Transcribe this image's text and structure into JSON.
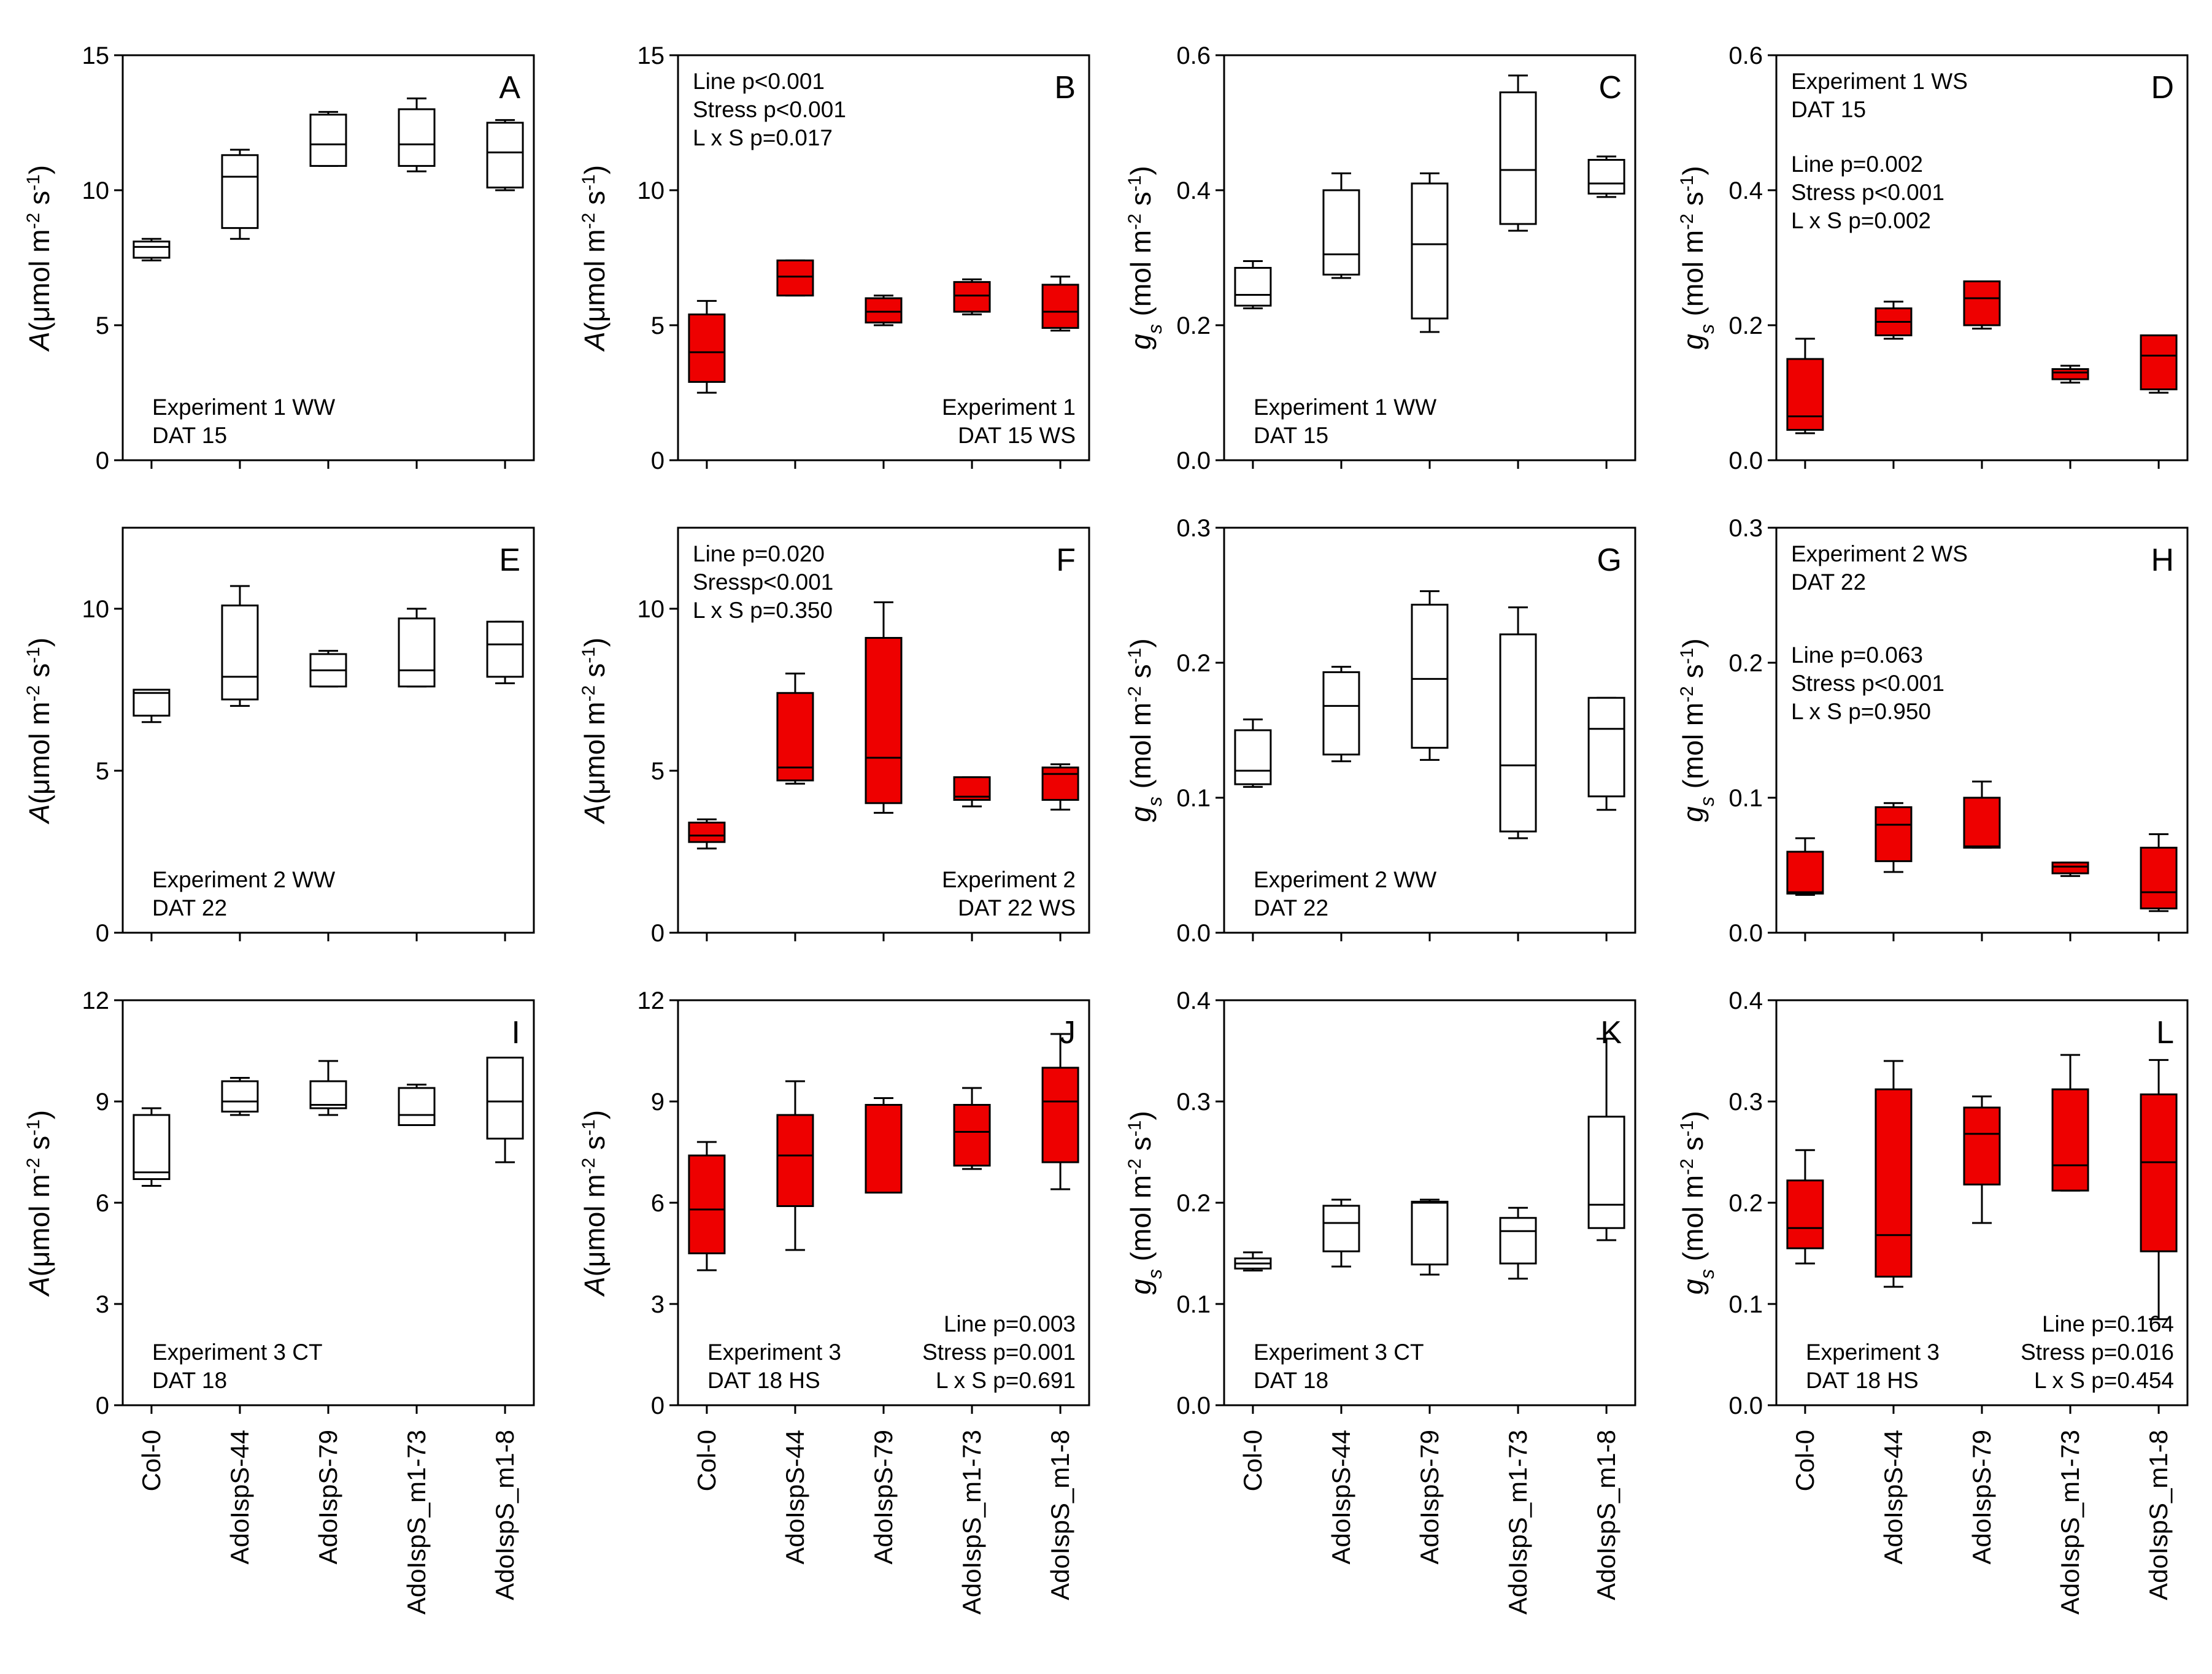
{
  "figure": {
    "x_categories": [
      "Col-0",
      "AdoIspS-44",
      "AdoIspS-79",
      "AdoIspS_m1-73",
      "AdoIspS_m1-8"
    ],
    "colors": {
      "stress_fill": "#ee0000",
      "control_fill": "#ffffff",
      "line": "#000000"
    }
  },
  "chart_data": [
    {
      "letter": "A",
      "type": "box",
      "condition": "WW",
      "ylabel": {
        "main": "A",
        "unit_open": "(μmol m",
        "sup1": "-2",
        "mid": " s",
        "sup2": "-1",
        "close": ")"
      },
      "yticks": [
        "0",
        "5",
        "10",
        "15"
      ],
      "ylim": [
        0,
        15
      ],
      "annotation_position": "bottom-left",
      "annotation": [
        "Experiment 1 WW",
        "DAT 15"
      ],
      "boxes": [
        {
          "category": "Col-0",
          "min": 7.4,
          "q1": 7.5,
          "median": 7.9,
          "q3": 8.1,
          "max": 8.2
        },
        {
          "category": "AdoIspS-44",
          "min": 8.2,
          "q1": 8.6,
          "median": 10.5,
          "q3": 11.3,
          "max": 11.5
        },
        {
          "category": "AdoIspS-79",
          "min": 10.9,
          "q1": 10.9,
          "median": 11.7,
          "q3": 12.8,
          "max": 12.9
        },
        {
          "category": "AdoIspS_m1-73",
          "min": 10.7,
          "q1": 10.9,
          "median": 11.7,
          "q3": 13.0,
          "max": 13.4
        },
        {
          "category": "AdoIspS_m1-8",
          "min": 10.0,
          "q1": 10.1,
          "median": 11.4,
          "q3": 12.5,
          "max": 12.6
        }
      ]
    },
    {
      "letter": "B",
      "type": "box",
      "condition": "WS",
      "ylabel": {
        "main": "A",
        "unit_open": "(μmol m",
        "sup1": "-2",
        "mid": " s",
        "sup2": "-1",
        "close": ")"
      },
      "yticks": [
        "0",
        "5",
        "10",
        "15"
      ],
      "ylim": [
        0,
        15
      ],
      "annotation_position": "top-left",
      "annotation": [
        "Line p<0.001",
        "Stress p<0.001",
        "L x S p=0.017"
      ],
      "annotation2_position": "bottom-right",
      "annotation2": [
        "Experiment 1",
        "DAT 15  WS"
      ],
      "boxes": [
        {
          "category": "Col-0",
          "min": 2.5,
          "q1": 2.9,
          "median": 4.0,
          "q3": 5.4,
          "max": 5.9
        },
        {
          "category": "AdoIspS-44",
          "min": 6.1,
          "q1": 6.1,
          "median": 6.8,
          "q3": 7.4,
          "max": 7.4
        },
        {
          "category": "AdoIspS-79",
          "min": 5.0,
          "q1": 5.1,
          "median": 5.5,
          "q3": 6.0,
          "max": 6.1
        },
        {
          "category": "AdoIspS_m1-73",
          "min": 5.4,
          "q1": 5.5,
          "median": 6.1,
          "q3": 6.6,
          "max": 6.7
        },
        {
          "category": "AdoIspS_m1-8",
          "min": 4.8,
          "q1": 4.9,
          "median": 5.5,
          "q3": 6.5,
          "max": 6.8
        }
      ]
    },
    {
      "letter": "C",
      "type": "box",
      "condition": "WW",
      "ylabel": {
        "main": "g",
        "sub": "s",
        "unit_open": " (mol m",
        "sup1": "-2",
        "mid": " s",
        "sup2": "-1",
        "close": ")"
      },
      "yticks": [
        "0.0",
        "0.2",
        "0.4",
        "0.6"
      ],
      "ylim": [
        0,
        0.6
      ],
      "annotation_position": "bottom-left",
      "annotation": [
        "Experiment 1  WW",
        "DAT 15"
      ],
      "boxes": [
        {
          "category": "Col-0",
          "min": 0.225,
          "q1": 0.229,
          "median": 0.245,
          "q3": 0.285,
          "max": 0.295
        },
        {
          "category": "AdoIspS-44",
          "min": 0.27,
          "q1": 0.275,
          "median": 0.305,
          "q3": 0.4,
          "max": 0.425
        },
        {
          "category": "AdoIspS-79",
          "min": 0.19,
          "q1": 0.21,
          "median": 0.32,
          "q3": 0.41,
          "max": 0.425
        },
        {
          "category": "AdoIspS_m1-73",
          "min": 0.34,
          "q1": 0.35,
          "median": 0.43,
          "q3": 0.545,
          "max": 0.57
        },
        {
          "category": "AdoIspS_m1-8",
          "min": 0.39,
          "q1": 0.395,
          "median": 0.41,
          "q3": 0.445,
          "max": 0.45
        }
      ]
    },
    {
      "letter": "D",
      "type": "box",
      "condition": "WS",
      "ylabel": {
        "main": "g",
        "sub": "s",
        "unit_open": " (mol m",
        "sup1": "-2",
        "mid": " s",
        "sup2": "-1",
        "close": ")"
      },
      "yticks": [
        "0.0",
        "0.2",
        "0.4",
        "0.6"
      ],
      "ylim": [
        0,
        0.6
      ],
      "annotation_position": "top-left",
      "annotation": [
        "Experiment 1 WS",
        "DAT 15"
      ],
      "annotation2_position": "upper-left",
      "annotation2": [
        "Line p=0.002",
        "Stress p<0.001",
        "L x S p=0.002"
      ],
      "boxes": [
        {
          "category": "Col-0",
          "min": 0.04,
          "q1": 0.045,
          "median": 0.065,
          "q3": 0.15,
          "max": 0.18
        },
        {
          "category": "AdoIspS-44",
          "min": 0.18,
          "q1": 0.185,
          "median": 0.205,
          "q3": 0.225,
          "max": 0.235
        },
        {
          "category": "AdoIspS-79",
          "min": 0.195,
          "q1": 0.2,
          "median": 0.24,
          "q3": 0.265,
          "max": 0.265
        },
        {
          "category": "AdoIspS_m1-73",
          "min": 0.115,
          "q1": 0.12,
          "median": 0.13,
          "q3": 0.135,
          "max": 0.14
        },
        {
          "category": "AdoIspS_m1-8",
          "min": 0.1,
          "q1": 0.105,
          "median": 0.155,
          "q3": 0.185,
          "max": 0.185
        }
      ]
    },
    {
      "letter": "E",
      "type": "box",
      "condition": "WW",
      "ylabel": {
        "main": "A",
        "unit_open": "(μmol m",
        "sup1": "-2",
        "mid": " s",
        "sup2": "-1",
        "close": ")"
      },
      "yticks": [
        "0",
        "5",
        "10"
      ],
      "ylim": [
        0,
        12.5
      ],
      "annotation_position": "bottom-left",
      "annotation": [
        "Experiment 2  WW",
        "DAT 22"
      ],
      "boxes": [
        {
          "category": "Col-0",
          "min": 6.5,
          "q1": 6.7,
          "median": 7.4,
          "q3": 7.5,
          "max": 7.5
        },
        {
          "category": "AdoIspS-44",
          "min": 7.0,
          "q1": 7.2,
          "median": 7.9,
          "q3": 10.1,
          "max": 10.7
        },
        {
          "category": "AdoIspS-79",
          "min": 7.6,
          "q1": 7.6,
          "median": 8.1,
          "q3": 8.6,
          "max": 8.7
        },
        {
          "category": "AdoIspS_m1-73",
          "min": 7.6,
          "q1": 7.6,
          "median": 8.1,
          "q3": 9.7,
          "max": 10.0
        },
        {
          "category": "AdoIspS_m1-8",
          "min": 7.7,
          "q1": 7.9,
          "median": 8.9,
          "q3": 9.6,
          "max": 9.6
        }
      ]
    },
    {
      "letter": "F",
      "type": "box",
      "condition": "WS",
      "ylabel": {
        "main": "A",
        "unit_open": "(μmol m",
        "sup1": "-2",
        "mid": " s",
        "sup2": "-1",
        "close": ")"
      },
      "yticks": [
        "0",
        "5",
        "10"
      ],
      "ylim": [
        0,
        12.5
      ],
      "annotation_position": "top-left",
      "annotation": [
        "Line p=0.020",
        "Sressp<0.001",
        "L x S p=0.350"
      ],
      "annotation2_position": "bottom-right",
      "annotation2": [
        "Experiment 2",
        "DAT 22  WS"
      ],
      "boxes": [
        {
          "category": "Col-0",
          "min": 2.6,
          "q1": 2.8,
          "median": 3.0,
          "q3": 3.4,
          "max": 3.5
        },
        {
          "category": "AdoIspS-44",
          "min": 4.6,
          "q1": 4.7,
          "median": 5.1,
          "q3": 7.4,
          "max": 8.0
        },
        {
          "category": "AdoIspS-79",
          "min": 3.7,
          "q1": 4.0,
          "median": 5.4,
          "q3": 9.1,
          "max": 10.2
        },
        {
          "category": "AdoIspS_m1-73",
          "min": 3.9,
          "q1": 4.1,
          "median": 4.2,
          "q3": 4.8,
          "max": 4.8
        },
        {
          "category": "AdoIspS_m1-8",
          "min": 3.8,
          "q1": 4.1,
          "median": 4.9,
          "q3": 5.1,
          "max": 5.2
        }
      ]
    },
    {
      "letter": "G",
      "type": "box",
      "condition": "WW",
      "ylabel": {
        "main": "g",
        "sub": "s",
        "unit_open": " (mol m",
        "sup1": "-2",
        "mid": " s",
        "sup2": "-1",
        "close": ")"
      },
      "yticks": [
        "0.0",
        "0.1",
        "0.2",
        "0.3"
      ],
      "ylim": [
        0,
        0.3
      ],
      "annotation_position": "bottom-left",
      "annotation": [
        "Experiment 2  WW",
        "DAT 22"
      ],
      "boxes": [
        {
          "category": "Col-0",
          "min": 0.108,
          "q1": 0.11,
          "median": 0.12,
          "q3": 0.15,
          "max": 0.158
        },
        {
          "category": "AdoIspS-44",
          "min": 0.127,
          "q1": 0.132,
          "median": 0.168,
          "q3": 0.193,
          "max": 0.197
        },
        {
          "category": "AdoIspS-79",
          "min": 0.128,
          "q1": 0.137,
          "median": 0.188,
          "q3": 0.243,
          "max": 0.253
        },
        {
          "category": "AdoIspS_m1-73",
          "min": 0.07,
          "q1": 0.075,
          "median": 0.124,
          "q3": 0.221,
          "max": 0.241
        },
        {
          "category": "AdoIspS_m1-8",
          "min": 0.091,
          "q1": 0.101,
          "median": 0.151,
          "q3": 0.174,
          "max": 0.174
        }
      ]
    },
    {
      "letter": "H",
      "type": "box",
      "condition": "WS",
      "ylabel": {
        "main": "g",
        "sub": "s",
        "unit_open": " (mol m",
        "sup1": "-2",
        "mid": " s",
        "sup2": "-1",
        "close": ")"
      },
      "yticks": [
        "0.0",
        "0.1",
        "0.2",
        "0.3"
      ],
      "ylim": [
        0,
        0.3
      ],
      "annotation_position": "top-left",
      "annotation": [
        "Experiment 2 WS",
        "DAT 22"
      ],
      "annotation2_position": "middle-left",
      "annotation2": [
        "Line p=0.063",
        "Stress p<0.001",
        "L x S p=0.950"
      ],
      "boxes": [
        {
          "category": "Col-0",
          "min": 0.028,
          "q1": 0.029,
          "median": 0.03,
          "q3": 0.06,
          "max": 0.07
        },
        {
          "category": "AdoIspS-44",
          "min": 0.045,
          "q1": 0.053,
          "median": 0.08,
          "q3": 0.093,
          "max": 0.096
        },
        {
          "category": "AdoIspS-79",
          "min": 0.063,
          "q1": 0.063,
          "median": 0.064,
          "q3": 0.1,
          "max": 0.112
        },
        {
          "category": "AdoIspS_m1-73",
          "min": 0.042,
          "q1": 0.044,
          "median": 0.049,
          "q3": 0.052,
          "max": 0.052
        },
        {
          "category": "AdoIspS_m1-8",
          "min": 0.016,
          "q1": 0.018,
          "median": 0.03,
          "q3": 0.063,
          "max": 0.073
        }
      ]
    },
    {
      "letter": "I",
      "type": "box",
      "condition": "CT",
      "ylabel": {
        "main": "A",
        "unit_open": "(μmol m",
        "sup1": "-2",
        "mid": " s",
        "sup2": "-1",
        "close": ")"
      },
      "yticks": [
        "0",
        "3",
        "6",
        "9",
        "12"
      ],
      "ylim": [
        0,
        12
      ],
      "annotation_position": "bottom-left",
      "annotation": [
        "Experiment 3  CT",
        "DAT 18"
      ],
      "boxes": [
        {
          "category": "Col-0",
          "min": 6.5,
          "q1": 6.7,
          "median": 6.9,
          "q3": 8.6,
          "max": 8.8
        },
        {
          "category": "AdoIspS-44",
          "min": 8.6,
          "q1": 8.7,
          "median": 9.0,
          "q3": 9.6,
          "max": 9.7
        },
        {
          "category": "AdoIspS-79",
          "min": 8.6,
          "q1": 8.8,
          "median": 8.9,
          "q3": 9.6,
          "max": 10.2
        },
        {
          "category": "AdoIspS_m1-73",
          "min": 8.3,
          "q1": 8.3,
          "median": 8.6,
          "q3": 9.4,
          "max": 9.5
        },
        {
          "category": "AdoIspS_m1-8",
          "min": 7.2,
          "q1": 7.9,
          "median": 9.0,
          "q3": 10.3,
          "max": 10.3
        }
      ]
    },
    {
      "letter": "J",
      "type": "box",
      "condition": "HS",
      "ylabel": {
        "main": "A",
        "unit_open": "(μmol m",
        "sup1": "-2",
        "mid": " s",
        "sup2": "-1",
        "close": ")"
      },
      "yticks": [
        "0",
        "3",
        "6",
        "9",
        "12"
      ],
      "ylim": [
        0,
        12
      ],
      "annotation_position": "bottom-left",
      "annotation": [
        "Experiment 3",
        "DAT 18 HS"
      ],
      "annotation2_position": "bottom-right",
      "annotation2": [
        "Line p=0.003",
        "Stress p=0.001",
        "L x S p=0.691"
      ],
      "boxes": [
        {
          "category": "Col-0",
          "min": 4.0,
          "q1": 4.5,
          "median": 5.8,
          "q3": 7.4,
          "max": 7.8
        },
        {
          "category": "AdoIspS-44",
          "min": 4.6,
          "q1": 5.9,
          "median": 7.4,
          "q3": 8.6,
          "max": 9.6
        },
        {
          "category": "AdoIspS-79",
          "min": 6.3,
          "q1": 6.3,
          "median": 6.3,
          "q3": 8.9,
          "max": 9.1
        },
        {
          "category": "AdoIspS_m1-73",
          "min": 7.0,
          "q1": 7.1,
          "median": 8.1,
          "q3": 8.9,
          "max": 9.4
        },
        {
          "category": "AdoIspS_m1-8",
          "min": 6.4,
          "q1": 7.2,
          "median": 9.0,
          "q3": 10.0,
          "max": 11.0
        }
      ]
    },
    {
      "letter": "K",
      "type": "box",
      "condition": "CT",
      "ylabel": {
        "main": "g",
        "sub": "s",
        "unit_open": " (mol m",
        "sup1": "-2",
        "mid": " s",
        "sup2": "-1",
        "close": ")"
      },
      "yticks": [
        "0.0",
        "0.1",
        "0.2",
        "0.3",
        "0.4"
      ],
      "ylim": [
        0,
        0.4
      ],
      "annotation_position": "bottom-left",
      "annotation": [
        "Experiment 3  CT",
        "DAT 18"
      ],
      "boxes": [
        {
          "category": "Col-0",
          "min": 0.133,
          "q1": 0.135,
          "median": 0.14,
          "q3": 0.145,
          "max": 0.151
        },
        {
          "category": "AdoIspS-44",
          "min": 0.137,
          "q1": 0.152,
          "median": 0.18,
          "q3": 0.197,
          "max": 0.203
        },
        {
          "category": "AdoIspS-79",
          "min": 0.129,
          "q1": 0.139,
          "median": 0.2,
          "q3": 0.201,
          "max": 0.203
        },
        {
          "category": "AdoIspS_m1-73",
          "min": 0.125,
          "q1": 0.14,
          "median": 0.172,
          "q3": 0.185,
          "max": 0.195
        },
        {
          "category": "AdoIspS_m1-8",
          "min": 0.163,
          "q1": 0.175,
          "median": 0.198,
          "q3": 0.285,
          "max": 0.362
        }
      ]
    },
    {
      "letter": "L",
      "type": "box",
      "condition": "HS",
      "ylabel": {
        "main": "g",
        "sub": "s",
        "unit_open": " (mol m",
        "sup1": "-2",
        "mid": " s",
        "sup2": "-1",
        "close": ")"
      },
      "yticks": [
        "0.0",
        "0.1",
        "0.2",
        "0.3",
        "0.4"
      ],
      "ylim": [
        0,
        0.4
      ],
      "annotation_position": "bottom-left",
      "annotation": [
        "Experiment 3",
        "DAT 18 HS"
      ],
      "annotation2_position": "bottom-right",
      "annotation2": [
        "Line p=0.164",
        "Stress p=0.016",
        "L x S p=0.454"
      ],
      "boxes": [
        {
          "category": "Col-0",
          "min": 0.14,
          "q1": 0.155,
          "median": 0.175,
          "q3": 0.222,
          "max": 0.252
        },
        {
          "category": "AdoIspS-44",
          "min": 0.117,
          "q1": 0.127,
          "median": 0.168,
          "q3": 0.312,
          "max": 0.34
        },
        {
          "category": "AdoIspS-79",
          "min": 0.18,
          "q1": 0.218,
          "median": 0.268,
          "q3": 0.294,
          "max": 0.305
        },
        {
          "category": "AdoIspS_m1-73",
          "min": 0.212,
          "q1": 0.212,
          "median": 0.237,
          "q3": 0.312,
          "max": 0.346
        },
        {
          "category": "AdoIspS_m1-8",
          "min": 0.085,
          "q1": 0.152,
          "median": 0.24,
          "q3": 0.307,
          "max": 0.341
        }
      ]
    }
  ]
}
